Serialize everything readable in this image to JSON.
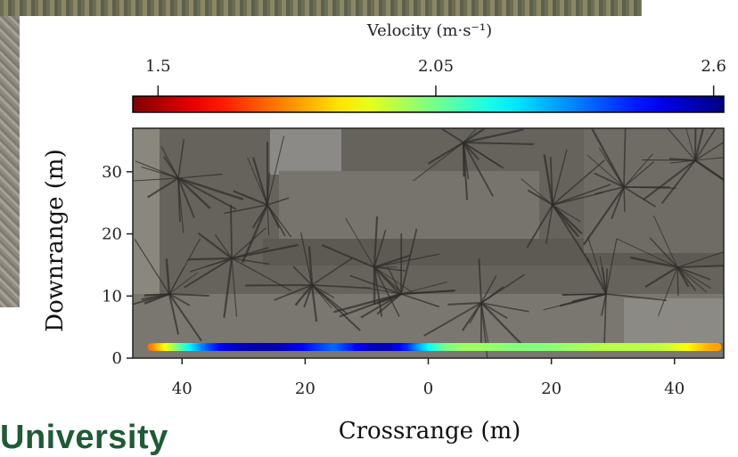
{
  "logo": {
    "text": "University"
  },
  "chart_data": {
    "type": "scatter",
    "title": "",
    "xlabel": "Crossrange (m)",
    "ylabel": "Downrange (m)",
    "xlim": [
      -48,
      48
    ],
    "ylim": [
      0,
      37
    ],
    "x_ticks": [
      {
        "value": -40,
        "label": "40"
      },
      {
        "value": -20,
        "label": "20"
      },
      {
        "value": 0,
        "label": "0"
      },
      {
        "value": 20,
        "label": "20"
      },
      {
        "value": 40,
        "label": "40"
      }
    ],
    "y_ticks": [
      {
        "value": 0,
        "label": "0"
      },
      {
        "value": 10,
        "label": "10"
      },
      {
        "value": 20,
        "label": "20"
      },
      {
        "value": 30,
        "label": "30"
      }
    ],
    "colorbar": {
      "label": "Velocity (m·s⁻¹)",
      "min": 1.45,
      "max": 2.62,
      "ticks": [
        {
          "value": 1.5,
          "label": "1.5"
        },
        {
          "value": 2.05,
          "label": "2.05"
        },
        {
          "value": 2.6,
          "label": "2.6"
        }
      ],
      "colormap": "jet_r"
    },
    "profile": {
      "y": 1.8,
      "x": [
        -45,
        -42,
        -39,
        -36,
        -33,
        -30,
        -27,
        -24,
        -21,
        -18,
        -15,
        -12,
        -9,
        -6,
        -3,
        0,
        3,
        6,
        9,
        12,
        15,
        18,
        21,
        24,
        27,
        30,
        33,
        36,
        39,
        42,
        45,
        47
      ],
      "velocity": [
        1.72,
        1.92,
        2.15,
        2.35,
        2.5,
        2.55,
        2.57,
        2.56,
        2.5,
        2.42,
        2.35,
        2.45,
        2.55,
        2.55,
        2.42,
        2.2,
        2.05,
        2.0,
        2.0,
        2.02,
        2.03,
        2.03,
        2.02,
        2.0,
        1.98,
        1.97,
        1.97,
        1.97,
        1.95,
        1.9,
        1.82,
        1.78
      ]
    }
  }
}
